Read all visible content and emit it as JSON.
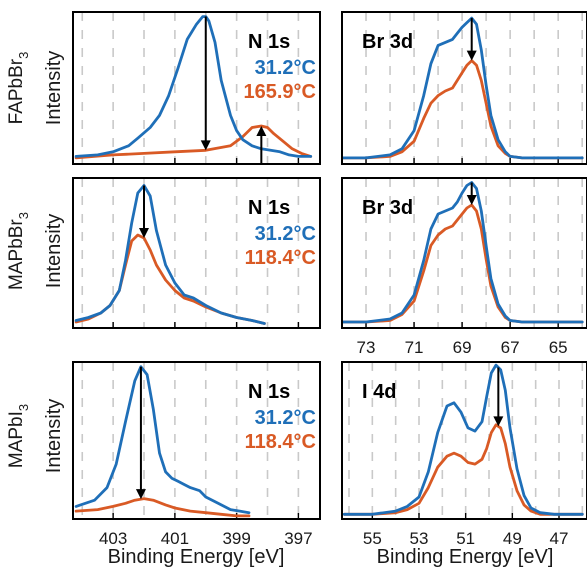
{
  "colors": {
    "low_temp": "#1f6fb8",
    "high_temp": "#d95a25",
    "grid": "#c9c9c9"
  },
  "axes": {
    "xlabel_left": "Binding Energy [eV]",
    "xlabel_right": "Binding Energy [eV]",
    "ylabel": "Intensity"
  },
  "rows": [
    {
      "label": "FAPbBr",
      "sub": "3"
    },
    {
      "label": "MAPbBr",
      "sub": "3"
    },
    {
      "label": "MAPbI",
      "sub": "3"
    }
  ],
  "chart_data": [
    {
      "type": "line",
      "title": "N 1s",
      "row": 0,
      "col": 0,
      "xlim": [
        404.3,
        396.3
      ],
      "ylim": [
        0,
        1.0
      ],
      "reversed_x": true,
      "grid": true,
      "xticks": [
        403,
        401,
        399,
        397
      ],
      "show_xtick_labels": false,
      "series": [
        {
          "name": "31.2°C",
          "color": "#1f6fb8",
          "x": [
            404.2,
            403.5,
            403,
            402.5,
            402.2,
            401.8,
            401.5,
            401.2,
            400.9,
            400.6,
            400.3,
            400.1,
            400.0,
            399.9,
            399.7,
            399.5,
            399.2,
            399,
            398.8,
            398.5,
            398.2,
            397.9,
            397.6,
            397.3,
            397,
            396.6
          ],
          "y": [
            0.05,
            0.06,
            0.08,
            0.12,
            0.17,
            0.24,
            0.32,
            0.45,
            0.63,
            0.82,
            0.92,
            0.97,
            0.97,
            0.94,
            0.8,
            0.55,
            0.32,
            0.22,
            0.16,
            0.12,
            0.1,
            0.09,
            0.08,
            0.06,
            0.05,
            0.05
          ]
        },
        {
          "name": "165.9°C",
          "color": "#d95a25",
          "x": [
            404.2,
            403,
            402,
            401,
            400,
            399.2,
            398.8,
            398.5,
            398.2,
            398,
            397.8,
            397.5,
            397.2,
            396.9,
            396.6
          ],
          "y": [
            0.04,
            0.06,
            0.07,
            0.08,
            0.09,
            0.12,
            0.18,
            0.24,
            0.25,
            0.24,
            0.2,
            0.15,
            0.1,
            0.07,
            0.05
          ]
        }
      ],
      "arrows": [
        {
          "direction": "down",
          "x": 400.0
        },
        {
          "direction": "up",
          "x": 398.2
        }
      ]
    },
    {
      "type": "line",
      "title": "Br 3d",
      "row": 0,
      "col": 1,
      "xlim": [
        74.0,
        63.8
      ],
      "ylim": [
        0,
        1.0
      ],
      "reversed_x": true,
      "grid": true,
      "xticks": [
        73,
        71,
        69,
        67,
        65
      ],
      "show_xtick_labels": false,
      "series": [
        {
          "name": "31.2°C",
          "color": "#1f6fb8",
          "x": [
            74,
            73,
            72,
            71.5,
            71,
            70.6,
            70.3,
            70,
            69.7,
            69.4,
            69.2,
            69,
            68.8,
            68.6,
            68.4,
            68.2,
            68,
            67.8,
            67.5,
            67.2,
            67,
            66.5,
            66,
            65,
            64
          ],
          "y": [
            0.04,
            0.04,
            0.06,
            0.1,
            0.22,
            0.45,
            0.66,
            0.78,
            0.8,
            0.82,
            0.86,
            0.9,
            0.93,
            0.96,
            0.92,
            0.75,
            0.52,
            0.32,
            0.16,
            0.08,
            0.05,
            0.04,
            0.04,
            0.04,
            0.04
          ]
        },
        {
          "name": "165.9°C",
          "color": "#d95a25",
          "x": [
            74,
            73,
            72,
            71.5,
            71,
            70.6,
            70.3,
            70,
            69.7,
            69.4,
            69.2,
            69,
            68.8,
            68.6,
            68.4,
            68.2,
            68,
            67.8,
            67.5,
            67.2,
            67,
            66.5,
            66,
            65,
            64
          ],
          "y": [
            0.04,
            0.04,
            0.05,
            0.08,
            0.15,
            0.3,
            0.4,
            0.45,
            0.48,
            0.5,
            0.55,
            0.6,
            0.65,
            0.68,
            0.65,
            0.55,
            0.4,
            0.25,
            0.12,
            0.07,
            0.05,
            0.04,
            0.04,
            0.04,
            0.04
          ]
        }
      ],
      "arrows": [
        {
          "direction": "down",
          "x": 68.6
        }
      ]
    },
    {
      "type": "line",
      "title": "N 1s",
      "row": 1,
      "col": 0,
      "xlim": [
        404.3,
        396.3
      ],
      "ylim": [
        0,
        1.0
      ],
      "reversed_x": true,
      "grid": true,
      "xticks": [
        403,
        401,
        399,
        397
      ],
      "show_xtick_labels": false,
      "series": [
        {
          "name": "31.2°C",
          "color": "#1f6fb8",
          "x": [
            404.2,
            403.8,
            403.4,
            403.1,
            402.8,
            402.6,
            402.4,
            402.2,
            402.0,
            401.8,
            401.6,
            401.3,
            401,
            400.7,
            400.4,
            400,
            399.5,
            399,
            398.5,
            398.1
          ],
          "y": [
            0.05,
            0.07,
            0.1,
            0.15,
            0.25,
            0.45,
            0.7,
            0.9,
            0.95,
            0.88,
            0.65,
            0.42,
            0.3,
            0.22,
            0.2,
            0.15,
            0.1,
            0.07,
            0.05,
            0.03
          ]
        },
        {
          "name": "118.4°C",
          "color": "#d95a25",
          "x": [
            404.2,
            403.8,
            403.4,
            403.1,
            402.8,
            402.6,
            402.4,
            402.2,
            402.0,
            401.8,
            401.6,
            401.3,
            401,
            400.7,
            400.4,
            400,
            399.5,
            399,
            398.5,
            398.1
          ],
          "y": [
            0.04,
            0.06,
            0.1,
            0.15,
            0.25,
            0.42,
            0.58,
            0.62,
            0.6,
            0.52,
            0.42,
            0.32,
            0.25,
            0.2,
            0.18,
            0.14,
            0.1,
            0.07,
            0.05,
            0.03
          ]
        }
      ],
      "arrows": [
        {
          "direction": "down",
          "x": 402.0
        }
      ]
    },
    {
      "type": "line",
      "title": "Br 3d",
      "row": 1,
      "col": 1,
      "xlim": [
        74.0,
        63.8
      ],
      "ylim": [
        0,
        1.0
      ],
      "reversed_x": true,
      "grid": true,
      "xticks": [
        73,
        71,
        69,
        67,
        65
      ],
      "show_xtick_labels": true,
      "series": [
        {
          "name": "31.2°C",
          "color": "#1f6fb8",
          "x": [
            74,
            73,
            72,
            71.5,
            71,
            70.6,
            70.3,
            70,
            69.7,
            69.4,
            69.2,
            69,
            68.8,
            68.6,
            68.4,
            68.2,
            68,
            67.8,
            67.5,
            67.2,
            67,
            66.5,
            66,
            65,
            64
          ],
          "y": [
            0.04,
            0.04,
            0.06,
            0.1,
            0.22,
            0.45,
            0.66,
            0.76,
            0.78,
            0.8,
            0.84,
            0.9,
            0.95,
            0.97,
            0.93,
            0.78,
            0.55,
            0.33,
            0.16,
            0.08,
            0.05,
            0.04,
            0.04,
            0.04,
            0.04
          ]
        },
        {
          "name": "165.9°C",
          "color": "#d95a25",
          "x": [
            74,
            73,
            72,
            71.5,
            71,
            70.6,
            70.3,
            70,
            69.7,
            69.4,
            69.2,
            69,
            68.8,
            68.6,
            68.4,
            68.2,
            68,
            67.8,
            67.5,
            67.2,
            67,
            66.5,
            66,
            65,
            64
          ],
          "y": [
            0.04,
            0.04,
            0.05,
            0.09,
            0.18,
            0.38,
            0.55,
            0.62,
            0.66,
            0.68,
            0.72,
            0.76,
            0.8,
            0.82,
            0.78,
            0.66,
            0.46,
            0.28,
            0.14,
            0.07,
            0.05,
            0.04,
            0.04,
            0.04,
            0.04
          ]
        }
      ],
      "arrows": [
        {
          "direction": "down",
          "x": 68.6
        }
      ]
    },
    {
      "type": "line",
      "title": "N 1s",
      "row": 2,
      "col": 0,
      "xlim": [
        404.3,
        396.3
      ],
      "ylim": [
        0,
        1.0
      ],
      "reversed_x": true,
      "grid": true,
      "xticks": [
        403,
        401,
        399,
        397
      ],
      "show_xtick_labels": true,
      "series": [
        {
          "name": "31.2°C",
          "color": "#1f6fb8",
          "x": [
            404.2,
            403.6,
            403.2,
            402.9,
            402.6,
            402.3,
            402.1,
            401.9,
            401.7,
            401.5,
            401.3,
            401.1,
            400.9,
            400.7,
            400.5,
            400.2,
            400,
            399.6,
            399.2,
            398.9,
            398.6
          ],
          "y": [
            0.08,
            0.12,
            0.2,
            0.35,
            0.62,
            0.88,
            0.97,
            0.92,
            0.7,
            0.42,
            0.3,
            0.26,
            0.24,
            0.22,
            0.2,
            0.18,
            0.14,
            0.1,
            0.06,
            0.05,
            0.04
          ]
        },
        {
          "name": "118.4°C",
          "color": "#d95a25",
          "x": [
            404.2,
            403.5,
            403,
            402.6,
            402.3,
            402.0,
            401.7,
            401.3,
            401,
            400.5,
            400,
            399.5,
            399,
            398.6
          ],
          "y": [
            0.05,
            0.06,
            0.08,
            0.1,
            0.12,
            0.13,
            0.12,
            0.09,
            0.07,
            0.05,
            0.04,
            0.03,
            0.02,
            0.02
          ]
        }
      ],
      "arrows": [
        {
          "direction": "down",
          "x": 402.1
        }
      ]
    },
    {
      "type": "line",
      "title": "I 4d",
      "row": 2,
      "col": 1,
      "xlim": [
        56.3,
        45.8
      ],
      "ylim": [
        0,
        1.0
      ],
      "reversed_x": true,
      "grid": true,
      "xticks": [
        55,
        53,
        51,
        49,
        47
      ],
      "show_xtick_labels": true,
      "series": [
        {
          "name": "31.2°C",
          "color": "#1f6fb8",
          "x": [
            56.2,
            55,
            54,
            53.5,
            53,
            52.6,
            52.2,
            51.8,
            51.5,
            51.2,
            50.9,
            50.6,
            50.3,
            50.1,
            49.9,
            49.7,
            49.5,
            49.3,
            49.1,
            48.8,
            48.5,
            48.2,
            47.8,
            47.2,
            46.5,
            46
          ],
          "y": [
            0.03,
            0.03,
            0.05,
            0.08,
            0.14,
            0.3,
            0.55,
            0.72,
            0.74,
            0.68,
            0.58,
            0.56,
            0.62,
            0.78,
            0.93,
            0.98,
            0.95,
            0.82,
            0.58,
            0.32,
            0.15,
            0.07,
            0.04,
            0.03,
            0.03,
            0.03
          ]
        },
        {
          "name": "118.4°C",
          "color": "#d95a25",
          "x": [
            56.2,
            55,
            54,
            53.5,
            53,
            52.6,
            52.2,
            51.8,
            51.5,
            51.2,
            50.9,
            50.6,
            50.3,
            50.1,
            49.9,
            49.7,
            49.5,
            49.3,
            49.1,
            48.8,
            48.5,
            48.2,
            47.8,
            47.2,
            46.5,
            46
          ],
          "y": [
            0.03,
            0.03,
            0.04,
            0.06,
            0.1,
            0.2,
            0.33,
            0.4,
            0.42,
            0.4,
            0.36,
            0.35,
            0.38,
            0.45,
            0.55,
            0.6,
            0.58,
            0.48,
            0.33,
            0.18,
            0.09,
            0.05,
            0.03,
            0.03,
            0.03,
            0.03
          ]
        }
      ],
      "arrows": [
        {
          "direction": "down",
          "x": 49.6
        }
      ]
    }
  ]
}
